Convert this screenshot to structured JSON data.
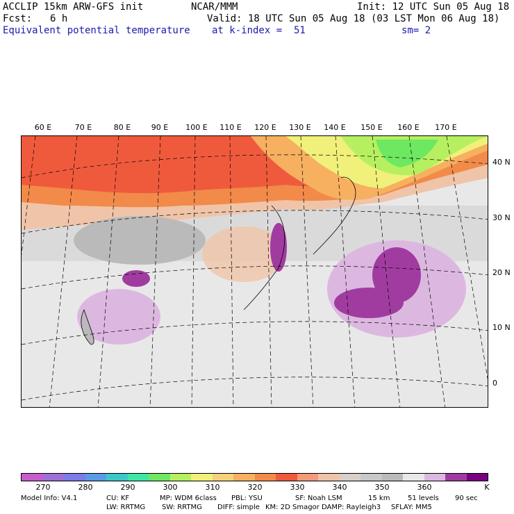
{
  "header": {
    "model": "ACCLIP 15km ARW-GFS init",
    "org": "NCAR/MMM",
    "init": "Init: 12 UTC Sun 05 Aug 18",
    "fcst_label": "Fcst:",
    "fcst_value": "6 h",
    "valid": "Valid: 18 UTC Sun 05 Aug 18 (03 LST Mon 06 Aug 18)",
    "field": "Equivalent potential temperature",
    "level": "at k-index =  51",
    "smooth": "sm= 2"
  },
  "map": {
    "lon_labels": [
      "60 E",
      "70 E",
      "80 E",
      "90 E",
      "100 E",
      "110 E",
      "120 E",
      "130 E",
      "140 E",
      "150 E",
      "160 E",
      "170 E"
    ],
    "lat_labels": [
      "40 N",
      "30 N",
      "20 N",
      "10 N",
      "0"
    ]
  },
  "colorbar": {
    "colors": [
      "#c75ccc",
      "#9e6fd6",
      "#7b7bea",
      "#5a9ae6",
      "#3cc8c8",
      "#3fe6a6",
      "#6de860",
      "#b6f060",
      "#f0f07a",
      "#f4d27a",
      "#f6b060",
      "#f28a4a",
      "#f05a3c",
      "#f29a7a",
      "#f0c4a8",
      "#d8d0c8",
      "#c8c8c8",
      "#bababa",
      "#e8e8e8",
      "#dcb8e0",
      "#a03ca0",
      "#7a0080"
    ],
    "ticks": [
      "270",
      "280",
      "290",
      "300",
      "310",
      "320",
      "330",
      "340",
      "350",
      "360",
      "K"
    ]
  },
  "footer": {
    "line1": [
      "Model Info: V4.1",
      "CU: KF",
      "MP: WDM 6class",
      "PBL: YSU",
      "SF: Noah LSM",
      "15 km",
      "51 levels",
      "90 sec"
    ],
    "line2": [
      "LW: RRTMG",
      "SW: RRTMG",
      "DIFF: simple",
      "KM: 2D Smagor",
      "DAMP: Rayleigh3",
      "SFLAY: MM5"
    ]
  }
}
